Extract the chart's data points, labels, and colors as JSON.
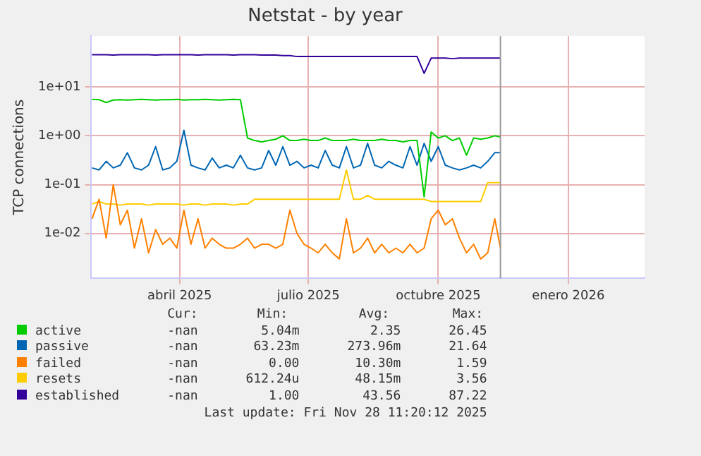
{
  "chart_data": {
    "type": "line",
    "title": "Netstat - by year",
    "ylabel": "TCP connections",
    "log": "y",
    "grid": true,
    "legend": "bottom",
    "marker": "none",
    "line_style": "solid",
    "x": [
      "2025-02-12",
      "2025-02-17",
      "2025-02-22",
      "2025-02-27",
      "2025-03-04",
      "2025-03-09",
      "2025-03-14",
      "2025-03-19",
      "2025-03-24",
      "2025-03-29",
      "2025-04-03",
      "2025-04-08",
      "2025-04-13",
      "2025-04-18",
      "2025-04-23",
      "2025-04-28",
      "2025-05-03",
      "2025-05-08",
      "2025-05-13",
      "2025-05-18",
      "2025-05-23",
      "2025-05-28",
      "2025-06-02",
      "2025-06-07",
      "2025-06-12",
      "2025-06-17",
      "2025-06-22",
      "2025-06-27",
      "2025-07-02",
      "2025-07-07",
      "2025-07-12",
      "2025-07-17",
      "2025-07-22",
      "2025-07-27",
      "2025-08-01",
      "2025-08-06",
      "2025-08-11",
      "2025-08-16",
      "2025-08-21",
      "2025-08-26",
      "2025-08-31",
      "2025-09-05",
      "2025-09-10",
      "2025-09-15",
      "2025-09-20",
      "2025-09-25",
      "2025-09-30",
      "2025-10-05",
      "2025-10-10",
      "2025-10-15",
      "2025-10-20",
      "2025-10-25",
      "2025-10-30",
      "2025-11-04",
      "2025-11-09",
      "2025-11-14",
      "2025-11-19",
      "2025-11-24",
      "2025-11-28"
    ],
    "xlim": [
      "2025-02-11",
      "2026-03-10"
    ],
    "xticks": [
      {
        "value": "2025-04-15",
        "label": "abril 2025"
      },
      {
        "value": "2025-07-15",
        "label": "julio 2025"
      },
      {
        "value": "2025-10-15",
        "label": "octubre 2025"
      },
      {
        "value": "2026-01-15",
        "label": "enero 2026"
      }
    ],
    "ylim": [
      0.0012,
      110
    ],
    "yticks": [
      {
        "value": 0.01,
        "label": "1e-02"
      },
      {
        "value": 0.1,
        "label": "1e-01"
      },
      {
        "value": 1,
        "label": "1e+00"
      },
      {
        "value": 10,
        "label": "1e+01"
      }
    ],
    "ref_lines": [
      {
        "axis": "x",
        "value": "2025-11-28",
        "color": "#999999"
      }
    ],
    "series": [
      {
        "name": "active",
        "color": "#00cc00",
        "values": [
          5.6,
          5.5,
          4.8,
          5.4,
          5.5,
          5.4,
          5.5,
          5.6,
          5.5,
          5.4,
          5.5,
          5.5,
          5.6,
          5.4,
          5.5,
          5.5,
          5.6,
          5.5,
          5.4,
          5.5,
          5.6,
          5.5,
          0.9,
          0.8,
          0.75,
          0.8,
          0.85,
          1.0,
          0.8,
          0.8,
          0.85,
          0.8,
          0.8,
          0.9,
          0.8,
          0.8,
          0.8,
          0.85,
          0.8,
          0.8,
          0.8,
          0.85,
          0.8,
          0.8,
          0.75,
          0.8,
          0.8,
          0.056,
          1.2,
          0.9,
          1.0,
          0.8,
          0.9,
          0.4,
          0.9,
          0.85,
          0.9,
          1.0,
          0.95
        ]
      },
      {
        "name": "passive",
        "color": "#0066b3",
        "values": [
          0.22,
          0.2,
          0.3,
          0.22,
          0.25,
          0.45,
          0.22,
          0.2,
          0.25,
          0.6,
          0.2,
          0.22,
          0.3,
          1.3,
          0.25,
          0.22,
          0.2,
          0.35,
          0.22,
          0.25,
          0.22,
          0.4,
          0.22,
          0.2,
          0.22,
          0.5,
          0.25,
          0.6,
          0.25,
          0.3,
          0.22,
          0.25,
          0.22,
          0.5,
          0.25,
          0.22,
          0.6,
          0.22,
          0.25,
          0.7,
          0.25,
          0.22,
          0.3,
          0.25,
          0.22,
          0.6,
          0.25,
          0.7,
          0.3,
          0.6,
          0.25,
          0.22,
          0.2,
          0.22,
          0.25,
          0.22,
          0.3,
          0.45,
          0.45
        ]
      },
      {
        "name": "failed",
        "color": "#ff8000",
        "values": [
          0.02,
          0.05,
          0.008,
          0.1,
          0.015,
          0.03,
          0.005,
          0.02,
          0.004,
          0.012,
          0.006,
          0.008,
          0.005,
          0.03,
          0.006,
          0.02,
          0.005,
          0.008,
          0.006,
          0.005,
          0.005,
          0.006,
          0.008,
          0.005,
          0.006,
          0.006,
          0.005,
          0.006,
          0.03,
          0.01,
          0.006,
          0.005,
          0.004,
          0.006,
          0.004,
          0.003,
          0.02,
          0.004,
          0.005,
          0.008,
          0.004,
          0.006,
          0.004,
          0.005,
          0.004,
          0.006,
          0.004,
          0.005,
          0.02,
          0.03,
          0.015,
          0.02,
          0.008,
          0.004,
          0.006,
          0.003,
          0.004,
          0.02,
          0.005
        ]
      },
      {
        "name": "resets",
        "color": "#ffcc00",
        "values": [
          0.04,
          0.045,
          0.04,
          0.04,
          0.038,
          0.04,
          0.04,
          0.04,
          0.038,
          0.04,
          0.04,
          0.04,
          0.04,
          0.038,
          0.04,
          0.04,
          0.038,
          0.04,
          0.04,
          0.04,
          0.038,
          0.04,
          0.04,
          0.05,
          0.05,
          0.05,
          0.05,
          0.05,
          0.05,
          0.05,
          0.05,
          0.05,
          0.05,
          0.05,
          0.05,
          0.05,
          0.2,
          0.05,
          0.05,
          0.06,
          0.05,
          0.05,
          0.05,
          0.05,
          0.05,
          0.05,
          0.05,
          0.05,
          0.045,
          0.045,
          0.045,
          0.045,
          0.045,
          0.045,
          0.045,
          0.045,
          0.11,
          0.11,
          0.11
        ]
      },
      {
        "name": "established",
        "color": "#330099",
        "values": [
          46,
          46,
          46,
          45,
          46,
          46,
          46,
          46,
          46,
          45,
          46,
          46,
          46,
          46,
          46,
          45,
          46,
          46,
          46,
          46,
          45,
          46,
          46,
          46,
          45,
          45,
          45,
          44,
          44,
          42,
          42,
          42,
          42,
          42,
          42,
          42,
          42,
          42,
          42,
          42,
          42,
          42,
          42,
          42,
          42,
          42,
          42,
          19,
          39,
          39,
          39,
          38,
          39,
          39,
          39,
          39,
          39,
          39,
          39
        ]
      }
    ],
    "annotations": [
      "Cur:",
      "Min:",
      "Avg:",
      "Max:",
      "-nan",
      "5.04m",
      "2.35",
      "26.45",
      "-nan",
      "63.23m",
      "273.96m",
      "21.64",
      "-nan",
      "0.00",
      "10.30m",
      "1.59",
      "-nan",
      "612.24u",
      "48.15m",
      "3.56",
      "-nan",
      "1.00",
      "43.56",
      "87.22",
      "Last update: Fri Nov 28 11:20:12 2025"
    ]
  }
}
